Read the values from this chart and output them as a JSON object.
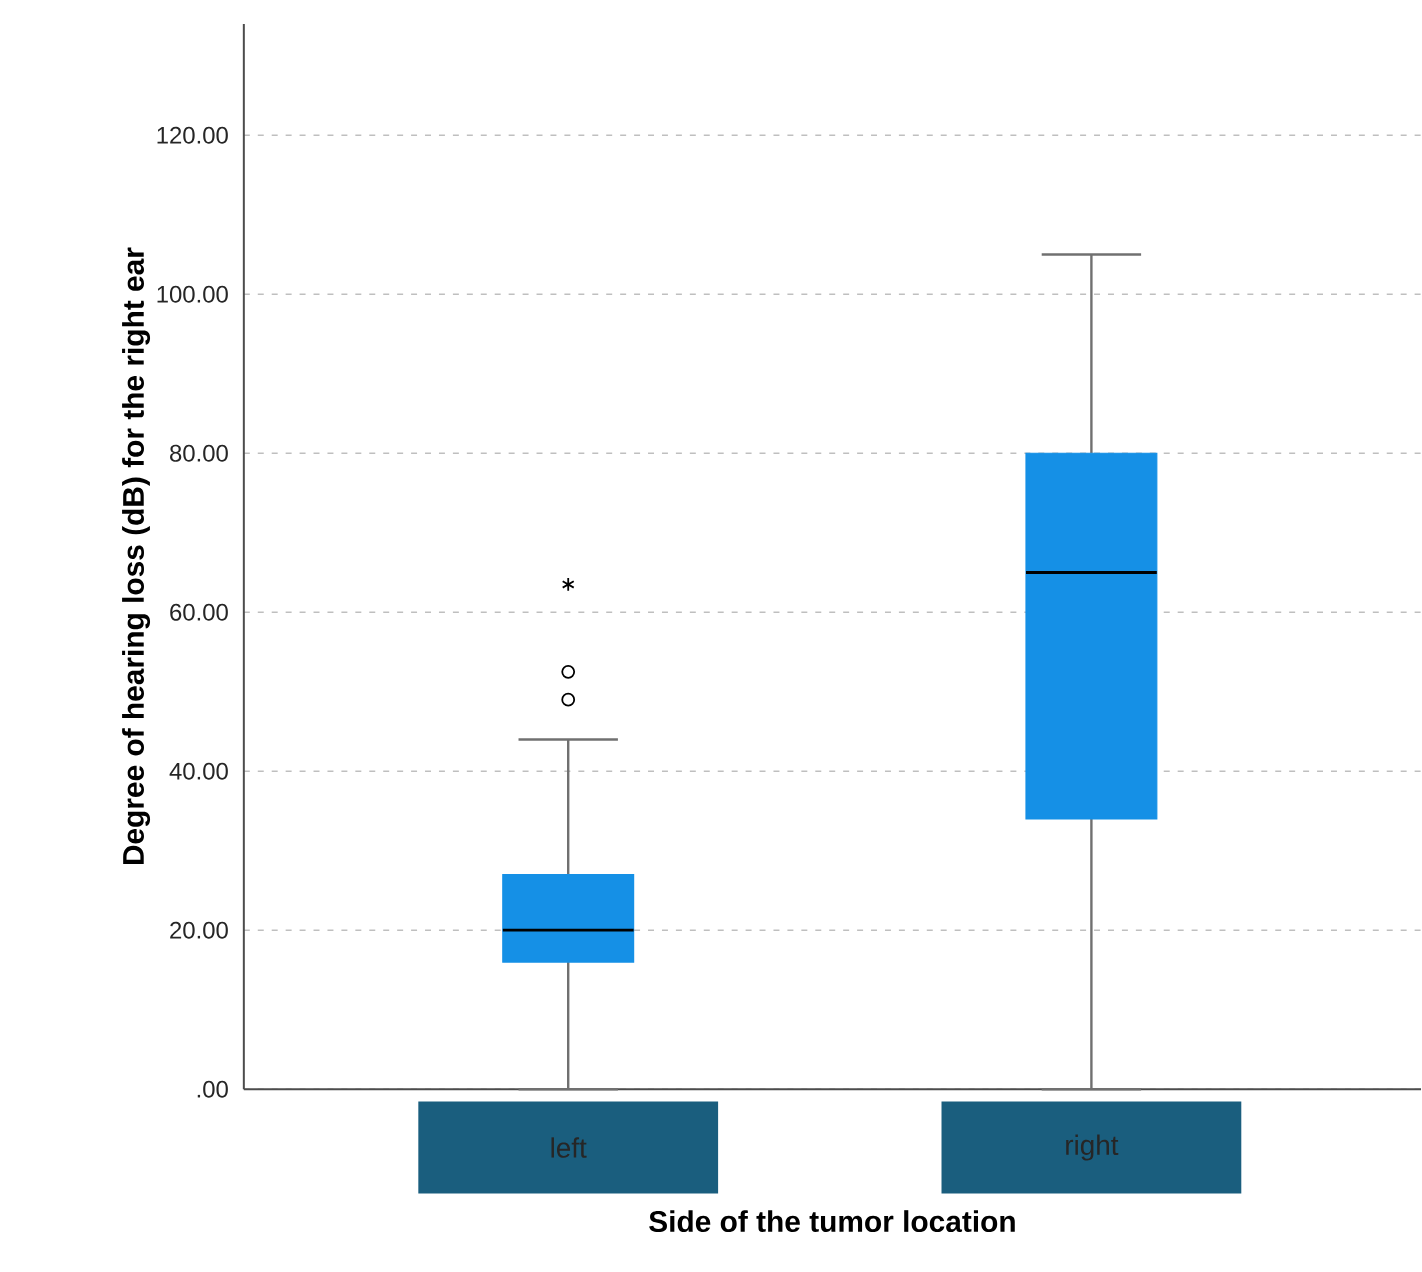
{
  "chart_data": {
    "type": "box",
    "xlabel": "Side of the tumor location",
    "ylabel": "Degree of hearing loss (dB) for the right ear",
    "categories": [
      "left",
      "right"
    ],
    "boxes": [
      {
        "low": 0,
        "q1": 16,
        "median": 20,
        "q3": 27,
        "high": 44,
        "outliers": [
          49,
          52.5,
          63.5
        ]
      },
      {
        "low": 0,
        "q1": 34,
        "median": 65,
        "q3": 80,
        "high": 105
      }
    ],
    "color": "#1590e6",
    "ylim": [
      0,
      134
    ],
    "yticks": [
      {
        "value": 0,
        "label": ".00"
      },
      {
        "value": 20,
        "label": "20.00"
      },
      {
        "value": 40,
        "label": "40.00"
      },
      {
        "value": 60,
        "label": "60.00"
      },
      {
        "value": 80,
        "label": "80.00"
      },
      {
        "value": 100,
        "label": "100.00"
      },
      {
        "value": 120,
        "label": "120.00"
      }
    ],
    "grid": "y"
  }
}
